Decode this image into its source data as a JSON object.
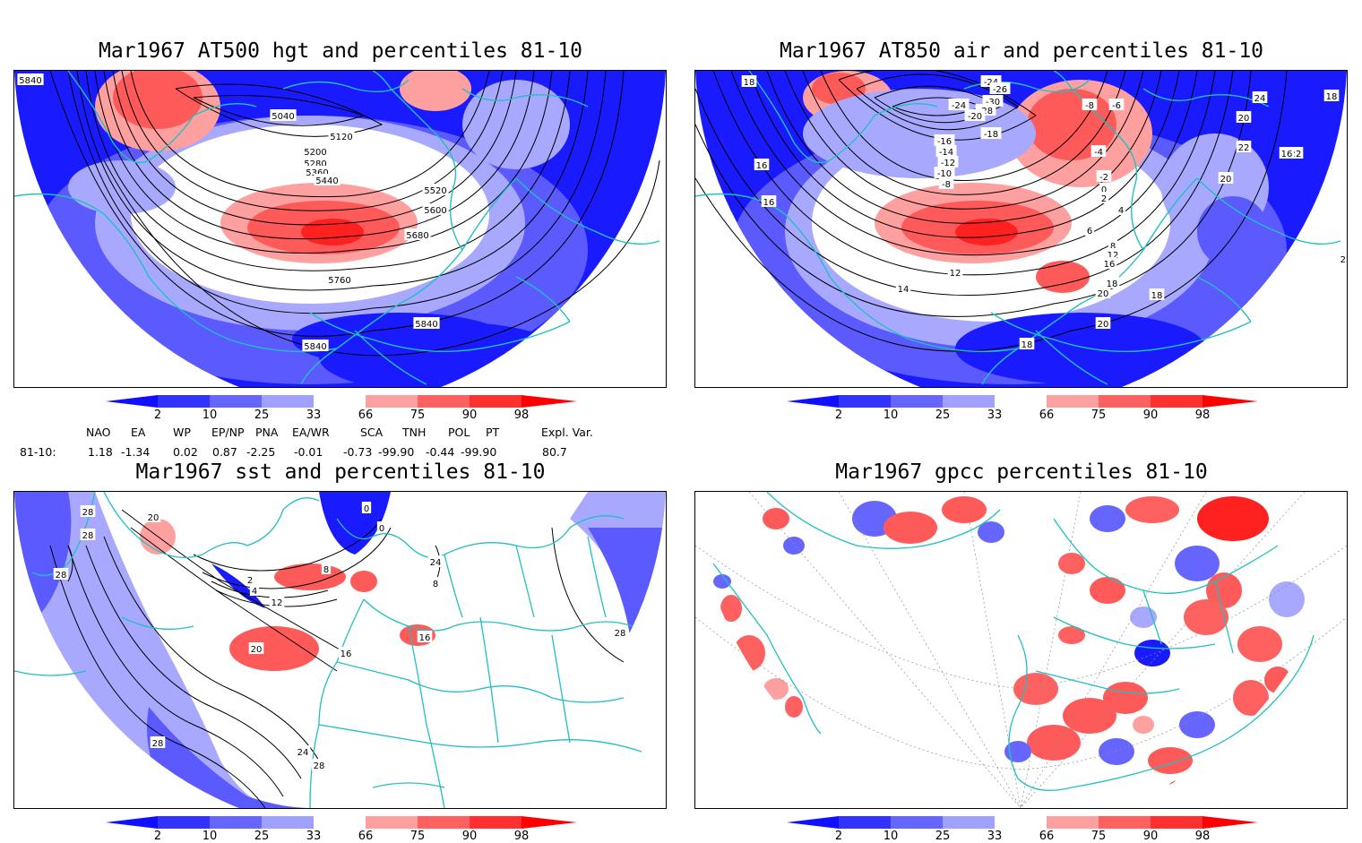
{
  "panels": [
    {
      "title": "Mar1967 AT500 hgt and percentiles 81-10",
      "contour_labels": [
        "5840",
        "5040",
        "5120",
        "5200",
        "5280",
        "5360",
        "5440",
        "5520",
        "5600",
        "5680",
        "5760",
        "5840",
        "5840"
      ]
    },
    {
      "title": "Mar1967 AT850 air and percentiles 81-10",
      "contour_labels": [
        "18",
        "-24",
        "-26",
        "-30",
        "-28",
        "-24",
        "-20",
        "-18",
        "-16",
        "-14",
        "-12",
        "-10",
        "-8",
        "-8",
        "-6",
        "-4",
        "-2",
        "0",
        "2",
        "4",
        "6",
        "8",
        "12",
        "16",
        "18",
        "20",
        "22",
        "24",
        "20",
        "22",
        "22",
        "20",
        "18",
        "14",
        "12",
        "16",
        "16",
        "18",
        "20",
        "18",
        "16"
      ]
    },
    {
      "title": "Mar1967 sst and percentiles 81-10",
      "contour_labels": [
        "28",
        "28",
        "28",
        "20",
        "0",
        "0",
        "2",
        "4",
        "8",
        "12",
        "16",
        "16",
        "20",
        "24",
        "28",
        "28",
        "28",
        "8",
        "24"
      ]
    },
    {
      "title": "Mar1967 gpcc percentiles 81-10",
      "contour_labels": []
    }
  ],
  "colorbar": {
    "labels": [
      "2",
      "10",
      "25",
      "33",
      "66",
      "75",
      "90",
      "98"
    ],
    "colors": {
      "below2": "#1010ff",
      "c2_10": "#3333ff",
      "c10_25": "#6666ff",
      "c25_33": "#a0a0ff",
      "c33_66": "#ffffff",
      "c66_75": "#ffa0a0",
      "c75_90": "#ff6060",
      "c90_98": "#ff3030",
      "above98": "#ff0000"
    }
  },
  "stats": {
    "headers": [
      "NAO",
      "EA",
      "WP",
      "EP/NP",
      "PNA",
      "EA/WR",
      "SCA",
      "TNH",
      "POL",
      "PT",
      "Expl. Var."
    ],
    "row_label": "81-10:",
    "values": [
      "1.18",
      "-1.34",
      "0.02",
      "0.87",
      "-2.25",
      "-0.01",
      "-0.73",
      "-99.90",
      "-0.44",
      "-99.90",
      "80.7"
    ]
  },
  "colors": {
    "coast": "#20c0c0",
    "contour": "#000000",
    "deep_blue": "#1a1aff",
    "mid_blue": "#5a5aff",
    "light_blue": "#a8a8ff",
    "light_red": "#ffa0a0",
    "mid_red": "#ff5a5a",
    "deep_red": "#ff2020"
  }
}
